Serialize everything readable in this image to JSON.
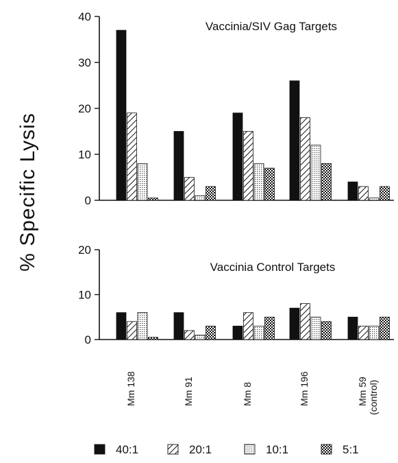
{
  "figure": {
    "ylabel": "% Specific Lysis"
  },
  "categories": [
    {
      "label": "Mm 138",
      "sub": ""
    },
    {
      "label": "Mm 91",
      "sub": ""
    },
    {
      "label": "Mm 8",
      "sub": ""
    },
    {
      "label": "Mm 196",
      "sub": ""
    },
    {
      "label": "Mm 59",
      "sub": "(control)"
    }
  ],
  "legend": [
    {
      "label": "40:1",
      "pattern": "solid"
    },
    {
      "label": "20:1",
      "pattern": "diagonal-hatch"
    },
    {
      "label": "10:1",
      "pattern": "fine-dots"
    },
    {
      "label": "5:1",
      "pattern": "checkered"
    }
  ],
  "chart_data": [
    {
      "type": "bar",
      "title": "Vaccinia/SIV Gag Targets",
      "categories": [
        "Mm 138",
        "Mm 91",
        "Mm 8",
        "Mm 196",
        "Mm 59 (control)"
      ],
      "ylim": [
        0,
        40
      ],
      "yticks": [
        0,
        10,
        20,
        30,
        40
      ],
      "series": [
        {
          "name": "40:1",
          "values": [
            37,
            15,
            19,
            26,
            4
          ]
        },
        {
          "name": "20:1",
          "values": [
            19,
            5,
            15,
            18,
            3
          ]
        },
        {
          "name": "10:1",
          "values": [
            8,
            1,
            8,
            12,
            0.5
          ]
        },
        {
          "name": "5:1",
          "values": [
            0.5,
            3,
            7,
            8,
            3
          ]
        }
      ]
    },
    {
      "type": "bar",
      "title": "Vaccinia Control Targets",
      "categories": [
        "Mm 138",
        "Mm 91",
        "Mm 8",
        "Mm 196",
        "Mm 59 (control)"
      ],
      "ylim": [
        0,
        20
      ],
      "yticks": [
        0,
        10,
        20
      ],
      "series": [
        {
          "name": "40:1",
          "values": [
            6,
            6,
            3,
            7,
            5
          ]
        },
        {
          "name": "20:1",
          "values": [
            4,
            2,
            6,
            8,
            3
          ]
        },
        {
          "name": "10:1",
          "values": [
            6,
            1,
            3,
            5,
            3
          ]
        },
        {
          "name": "5:1",
          "values": [
            0.5,
            3,
            5,
            4,
            5
          ]
        }
      ]
    }
  ]
}
